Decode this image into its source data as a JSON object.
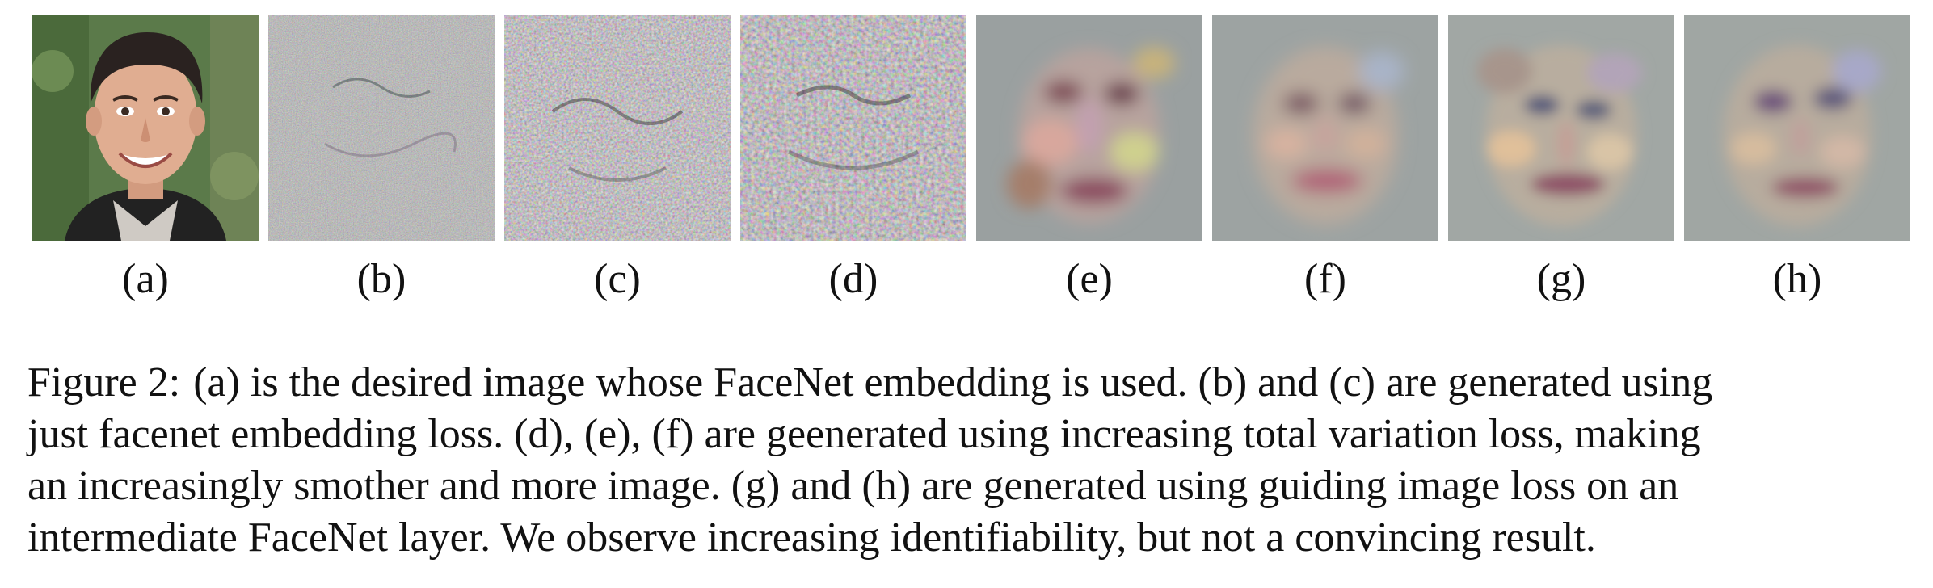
{
  "figure": {
    "panels": [
      {
        "id": "a",
        "label": "(a)",
        "kind": "photo"
      },
      {
        "id": "b",
        "label": "(b)",
        "kind": "noise"
      },
      {
        "id": "c",
        "label": "(c)",
        "kind": "noise"
      },
      {
        "id": "d",
        "label": "(d)",
        "kind": "noise"
      },
      {
        "id": "e",
        "label": "(e)",
        "kind": "smooth-face"
      },
      {
        "id": "f",
        "label": "(f)",
        "kind": "smooth-face"
      },
      {
        "id": "g",
        "label": "(g)",
        "kind": "guided-face"
      },
      {
        "id": "h",
        "label": "(h)",
        "kind": "guided-face"
      }
    ],
    "caption": {
      "label": "Figure 2:",
      "lines": [
        "(a) is the desired image whose FaceNet embedding is used. (b) and (c) are generated using",
        "just facenet embedding loss. (d), (e), (f) are geenerated using increasing total variation loss, making",
        "an increasingly smother and more image. (g) and (h) are generated using guiding image loss on an",
        "intermediate FaceNet layer. We observe increasing identifiability, but not a convincing result."
      ]
    }
  }
}
